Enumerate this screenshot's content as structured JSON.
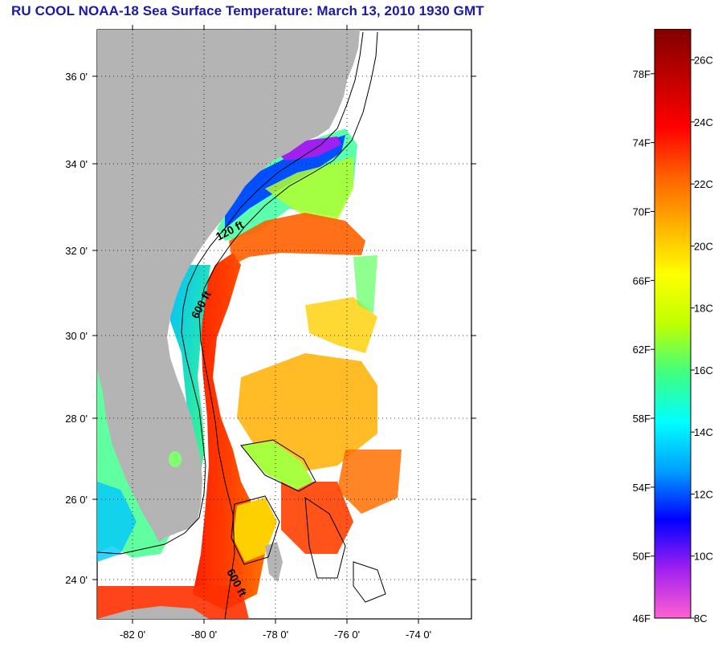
{
  "title": "RU COOL  NOAA-18  Sea Surface Temperature:  March 13, 2010 1930 GMT",
  "map": {
    "lat_labels": [
      "36 0'",
      "34 0'",
      "32 0'",
      "30 0'",
      "28 0'",
      "26 0'",
      "24 0'"
    ],
    "lon_labels": [
      "-82 0'",
      "-80 0'",
      "-78 0'",
      "-76 0'",
      "-74 0'"
    ],
    "lat_range": [
      23,
      37.1
    ],
    "lon_range": [
      -83,
      -73
    ],
    "contour_labels": [
      "120 ft",
      "600 ft",
      "600 ft"
    ],
    "colors": {
      "land": "#b4b4b4",
      "no_data": "#ffffff",
      "grid": "#000000"
    }
  },
  "colorbar": {
    "fahrenheit_labels": [
      "78F",
      "74F",
      "70F",
      "66F",
      "62F",
      "58F",
      "54F",
      "50F",
      "46F"
    ],
    "celsius_labels": [
      "26C",
      "24C",
      "22C",
      "20C",
      "18C",
      "16C",
      "14C",
      "12C",
      "10C",
      "8C"
    ],
    "range_c": [
      8,
      27
    ],
    "gradient": [
      "#ff60d0",
      "#a020f0",
      "#0000ff",
      "#00a0ff",
      "#00ffff",
      "#40ff80",
      "#c0ff00",
      "#ffff00",
      "#ffb000",
      "#ff6000",
      "#ff0000",
      "#c00000",
      "#800000"
    ]
  }
}
